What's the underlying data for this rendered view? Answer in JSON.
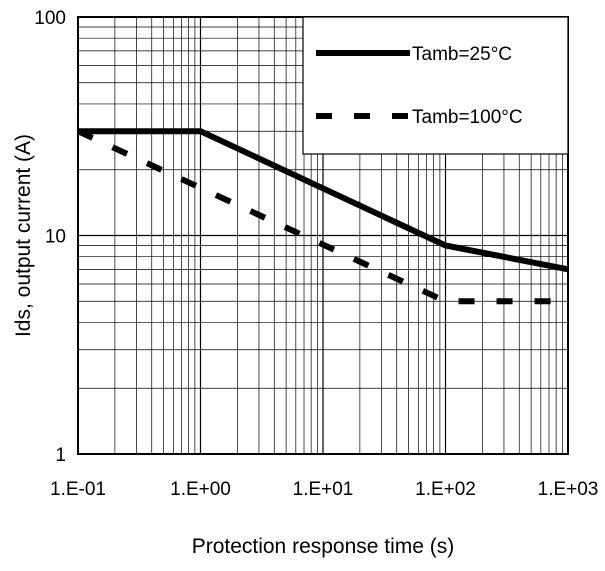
{
  "chart_data": {
    "type": "line",
    "title": "",
    "xlabel": "Protection response time (s)",
    "ylabel": "Ids, output current (A)",
    "xscale": "log",
    "yscale": "log",
    "xlim": [
      0.1,
      1000
    ],
    "ylim": [
      1,
      100
    ],
    "grid": true,
    "legend_position": "top-right",
    "x_tick_labels": [
      "1.E-01",
      "1.E+00",
      "1.E+01",
      "1.E+02",
      "1.E+03"
    ],
    "y_tick_labels": [
      "1",
      "10",
      "100"
    ],
    "series": [
      {
        "name": "Tamb=25°C",
        "style": "solid",
        "color": "#000000",
        "points": [
          [
            0.1,
            30
          ],
          [
            1,
            30
          ],
          [
            100,
            9
          ],
          [
            1000,
            7
          ]
        ]
      },
      {
        "name": "Tamb=100°C",
        "style": "dashed",
        "color": "#000000",
        "points": [
          [
            0.1,
            30
          ],
          [
            100,
            5
          ],
          [
            1000,
            5
          ]
        ]
      }
    ]
  }
}
